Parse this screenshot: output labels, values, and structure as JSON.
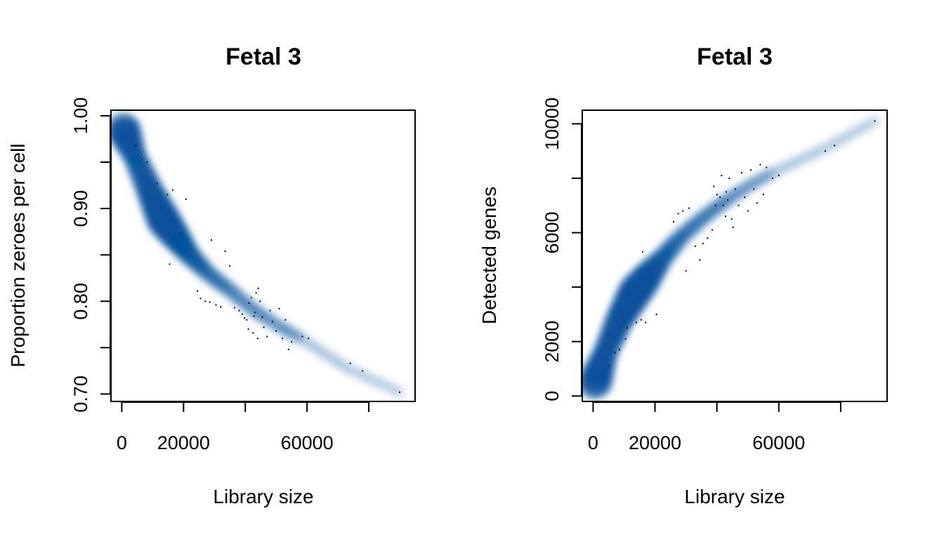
{
  "chart_data": [
    {
      "type": "scatter",
      "style": "smoothed-density",
      "color": "#08519c",
      "title": "Fetal 3",
      "xlabel": "Library size",
      "ylabel": "Proportion zeroes per cell",
      "xlim": [
        -3500,
        95000
      ],
      "ylim": [
        0.692,
        1.006
      ],
      "x_ticks": [
        0,
        20000,
        40000,
        60000,
        80000
      ],
      "x_tick_labels": [
        "0",
        "20000",
        "",
        "60000",
        ""
      ],
      "y_ticks": [
        0.7,
        0.75,
        0.8,
        0.85,
        0.9,
        0.95,
        1.0
      ],
      "y_tick_labels": [
        "0.70",
        "",
        "0.80",
        "",
        "0.90",
        "",
        "1.00"
      ],
      "density_centers": [
        {
          "x": 600,
          "y": 0.985,
          "weight": 1.0
        },
        {
          "x": 4000,
          "y": 0.958,
          "weight": 0.55
        },
        {
          "x": 9000,
          "y": 0.92,
          "weight": 0.7
        },
        {
          "x": 13500,
          "y": 0.888,
          "weight": 1.0
        },
        {
          "x": 17000,
          "y": 0.872,
          "weight": 0.8
        },
        {
          "x": 22000,
          "y": 0.85,
          "weight": 0.45
        },
        {
          "x": 28000,
          "y": 0.83,
          "weight": 0.28
        },
        {
          "x": 35000,
          "y": 0.812,
          "weight": 0.22
        },
        {
          "x": 43000,
          "y": 0.79,
          "weight": 0.18
        },
        {
          "x": 51000,
          "y": 0.773,
          "weight": 0.12
        },
        {
          "x": 58000,
          "y": 0.76,
          "weight": 0.08
        },
        {
          "x": 73000,
          "y": 0.728,
          "weight": 0.06
        },
        {
          "x": 90000,
          "y": 0.702,
          "weight": 0.05
        }
      ],
      "outliers": [
        {
          "x": 4500,
          "y": 0.968
        },
        {
          "x": 6500,
          "y": 0.953
        },
        {
          "x": 8200,
          "y": 0.95
        },
        {
          "x": 11500,
          "y": 0.927
        },
        {
          "x": 14800,
          "y": 0.915
        },
        {
          "x": 16500,
          "y": 0.92
        },
        {
          "x": 20800,
          "y": 0.91
        },
        {
          "x": 15500,
          "y": 0.84
        },
        {
          "x": 29000,
          "y": 0.866
        },
        {
          "x": 33500,
          "y": 0.854
        },
        {
          "x": 24500,
          "y": 0.811
        },
        {
          "x": 25500,
          "y": 0.803
        },
        {
          "x": 27000,
          "y": 0.8
        },
        {
          "x": 28500,
          "y": 0.799
        },
        {
          "x": 30500,
          "y": 0.796
        },
        {
          "x": 32000,
          "y": 0.794
        },
        {
          "x": 35000,
          "y": 0.838
        },
        {
          "x": 36500,
          "y": 0.793
        },
        {
          "x": 38000,
          "y": 0.79
        },
        {
          "x": 39000,
          "y": 0.786
        },
        {
          "x": 39800,
          "y": 0.782
        },
        {
          "x": 40500,
          "y": 0.78
        },
        {
          "x": 41200,
          "y": 0.798
        },
        {
          "x": 42000,
          "y": 0.804
        },
        {
          "x": 42800,
          "y": 0.784
        },
        {
          "x": 43500,
          "y": 0.809
        },
        {
          "x": 44200,
          "y": 0.814
        },
        {
          "x": 44800,
          "y": 0.8
        },
        {
          "x": 45500,
          "y": 0.783
        },
        {
          "x": 46000,
          "y": 0.772
        },
        {
          "x": 47000,
          "y": 0.762
        },
        {
          "x": 48000,
          "y": 0.79
        },
        {
          "x": 48800,
          "y": 0.778
        },
        {
          "x": 50000,
          "y": 0.768
        },
        {
          "x": 51000,
          "y": 0.792
        },
        {
          "x": 52000,
          "y": 0.76
        },
        {
          "x": 53000,
          "y": 0.78
        },
        {
          "x": 54000,
          "y": 0.748
        },
        {
          "x": 55000,
          "y": 0.756
        },
        {
          "x": 58500,
          "y": 0.762
        },
        {
          "x": 60500,
          "y": 0.76
        },
        {
          "x": 41000,
          "y": 0.77
        },
        {
          "x": 42500,
          "y": 0.766
        },
        {
          "x": 44000,
          "y": 0.76
        },
        {
          "x": 43200,
          "y": 0.788
        },
        {
          "x": 74000,
          "y": 0.733
        },
        {
          "x": 78000,
          "y": 0.725
        },
        {
          "x": 90000,
          "y": 0.702
        }
      ]
    },
    {
      "type": "scatter",
      "style": "smoothed-density",
      "color": "#08519c",
      "title": "Fetal 3",
      "xlabel": "Library size",
      "ylabel": "Detected genes",
      "xlim": [
        -3500,
        95000
      ],
      "ylim": [
        -200,
        10500
      ],
      "x_ticks": [
        0,
        20000,
        40000,
        60000,
        80000
      ],
      "x_tick_labels": [
        "0",
        "20000",
        "",
        "60000",
        ""
      ],
      "y_ticks": [
        0,
        2000,
        4000,
        6000,
        8000,
        10000
      ],
      "y_tick_labels": [
        "0",
        "2000",
        "",
        "6000",
        "",
        "10000"
      ],
      "density_centers": [
        {
          "x": 600,
          "y": 500,
          "weight": 1.0
        },
        {
          "x": 4000,
          "y": 1600,
          "weight": 0.6
        },
        {
          "x": 8500,
          "y": 2800,
          "weight": 0.75
        },
        {
          "x": 13500,
          "y": 3800,
          "weight": 1.0
        },
        {
          "x": 17000,
          "y": 4300,
          "weight": 0.85
        },
        {
          "x": 22000,
          "y": 5000,
          "weight": 0.45
        },
        {
          "x": 28000,
          "y": 5800,
          "weight": 0.3
        },
        {
          "x": 35000,
          "y": 6500,
          "weight": 0.22
        },
        {
          "x": 42000,
          "y": 7100,
          "weight": 0.18
        },
        {
          "x": 50000,
          "y": 7700,
          "weight": 0.12
        },
        {
          "x": 58000,
          "y": 8200,
          "weight": 0.08
        },
        {
          "x": 75000,
          "y": 9100,
          "weight": 0.06
        },
        {
          "x": 91000,
          "y": 10100,
          "weight": 0.05
        }
      ],
      "outliers": [
        {
          "x": 5000,
          "y": 1100
        },
        {
          "x": 7000,
          "y": 1600
        },
        {
          "x": 8500,
          "y": 1700
        },
        {
          "x": 10500,
          "y": 2100
        },
        {
          "x": 11000,
          "y": 2500
        },
        {
          "x": 14000,
          "y": 2700
        },
        {
          "x": 15500,
          "y": 2800
        },
        {
          "x": 17000,
          "y": 2700
        },
        {
          "x": 20500,
          "y": 3000
        },
        {
          "x": 16000,
          "y": 5300
        },
        {
          "x": 26000,
          "y": 6400
        },
        {
          "x": 27500,
          "y": 6700
        },
        {
          "x": 29000,
          "y": 6800
        },
        {
          "x": 31000,
          "y": 6900
        },
        {
          "x": 30000,
          "y": 4600
        },
        {
          "x": 33000,
          "y": 5500
        },
        {
          "x": 34500,
          "y": 5000
        },
        {
          "x": 35500,
          "y": 5600
        },
        {
          "x": 37000,
          "y": 5800
        },
        {
          "x": 38500,
          "y": 6100
        },
        {
          "x": 39000,
          "y": 7700
        },
        {
          "x": 40000,
          "y": 7400
        },
        {
          "x": 41000,
          "y": 7300
        },
        {
          "x": 41500,
          "y": 8100
        },
        {
          "x": 42000,
          "y": 7000
        },
        {
          "x": 42800,
          "y": 6600
        },
        {
          "x": 43500,
          "y": 7200
        },
        {
          "x": 44000,
          "y": 8000
        },
        {
          "x": 44800,
          "y": 6500
        },
        {
          "x": 45200,
          "y": 6200
        },
        {
          "x": 46000,
          "y": 7600
        },
        {
          "x": 47000,
          "y": 7000
        },
        {
          "x": 48000,
          "y": 8200
        },
        {
          "x": 49000,
          "y": 7300
        },
        {
          "x": 50000,
          "y": 6800
        },
        {
          "x": 51000,
          "y": 8300
        },
        {
          "x": 52000,
          "y": 7600
        },
        {
          "x": 53000,
          "y": 7100
        },
        {
          "x": 54000,
          "y": 8500
        },
        {
          "x": 55000,
          "y": 7400
        },
        {
          "x": 56000,
          "y": 8400
        },
        {
          "x": 58000,
          "y": 8000
        },
        {
          "x": 60000,
          "y": 8100
        },
        {
          "x": 39500,
          "y": 7000
        },
        {
          "x": 43000,
          "y": 7500
        },
        {
          "x": 75000,
          "y": 9000
        },
        {
          "x": 78000,
          "y": 9200
        },
        {
          "x": 91000,
          "y": 10100
        }
      ]
    }
  ]
}
